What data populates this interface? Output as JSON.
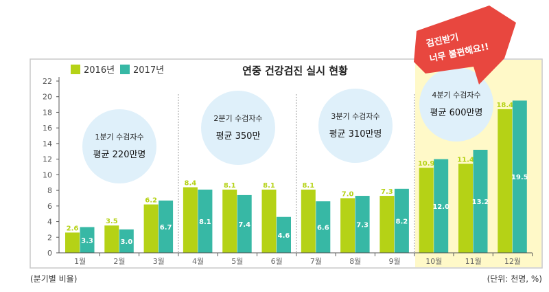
{
  "chart_data": {
    "type": "bar",
    "title": "연중 건강검진 실시 현황",
    "categories": [
      "1월",
      "2월",
      "3월",
      "4월",
      "5월",
      "6월",
      "7월",
      "8월",
      "9월",
      "10월",
      "11월",
      "12월"
    ],
    "series": [
      {
        "name": "2016년",
        "color": "#b5d216",
        "values": [
          2.6,
          3.5,
          6.2,
          8.4,
          8.1,
          8.1,
          8.1,
          7.0,
          7.3,
          10.9,
          11.4,
          18.4
        ]
      },
      {
        "name": "2017년",
        "color": "#37b8a5",
        "values": [
          3.3,
          3.0,
          6.7,
          8.1,
          7.4,
          4.6,
          6.6,
          7.3,
          8.2,
          12.0,
          13.2,
          19.5
        ]
      }
    ],
    "ylim": [
      0,
      22
    ],
    "yticks": [
      0,
      2,
      4,
      6,
      8,
      10,
      12,
      14,
      16,
      18,
      20,
      22
    ],
    "grid": false,
    "legend": "top-left",
    "highlight_color": "#fff9c8",
    "quarters": [
      {
        "line1": "1분기 수검자수",
        "line2": "평균 220만명"
      },
      {
        "line1": "2분기 수검자수",
        "line2": "평균 350만"
      },
      {
        "line1": "3분기 수검자수",
        "line2": "평균 310만명"
      },
      {
        "line1": "4분기 수검자수",
        "line2": "평균 600만명"
      }
    ],
    "callout": {
      "line1": "검진받기",
      "line2": "너무 불편해요!!",
      "color": "#e8473f"
    },
    "footnote_left": "(분기별 비율)",
    "footnote_right": "(단위: 천명, %)"
  }
}
